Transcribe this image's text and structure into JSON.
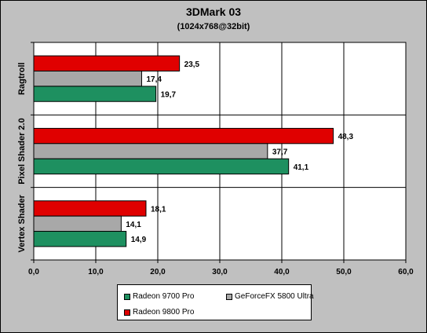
{
  "chart_data": {
    "type": "bar",
    "orientation": "horizontal",
    "title": "3DMark 03",
    "subtitle": "(1024x768@32bit)",
    "categories": [
      "Ragtroll",
      "Pixel Shader 2.0",
      "Vertex Shader"
    ],
    "series": [
      {
        "name": "Radeon 9800 Pro",
        "color": "#e00000",
        "values": [
          23.5,
          48.3,
          18.1
        ],
        "labels": [
          "23,5",
          "48,3",
          "18,1"
        ]
      },
      {
        "name": "GeForceFX 5800 Ultra",
        "color": "#a8a8a8",
        "values": [
          17.4,
          37.7,
          14.1
        ],
        "labels": [
          "17,4",
          "37,7",
          "14,1"
        ]
      },
      {
        "name": "Radeon 9700 Pro",
        "color": "#1e9060",
        "values": [
          19.7,
          41.1,
          14.9
        ],
        "labels": [
          "19,7",
          "41,1",
          "14,9"
        ]
      }
    ],
    "x_ticks": [
      "0,0",
      "10,0",
      "20,0",
      "30,0",
      "40,0",
      "50,0",
      "60,0"
    ],
    "xlim": [
      0,
      60
    ],
    "grid": true,
    "legend": {
      "position": "bottom",
      "items": [
        "Radeon 9700 Pro",
        "GeForceFX 5800 Ultra",
        "Radeon 9800 Pro"
      ],
      "colors": [
        "#1e9060",
        "#a8a8a8",
        "#e00000"
      ]
    }
  }
}
